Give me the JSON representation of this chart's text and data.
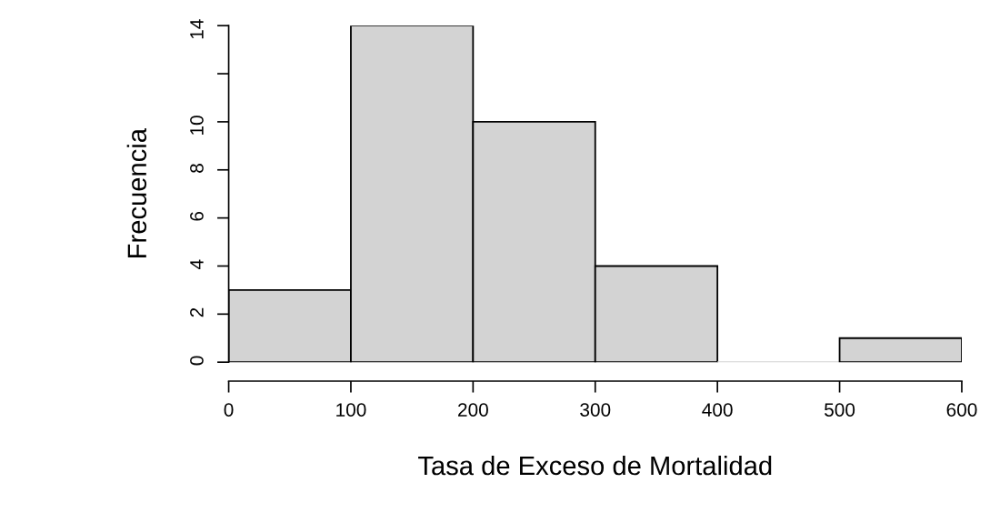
{
  "chart_data": {
    "type": "histogram",
    "xlabel": "Tasa de Exceso de Mortalidad",
    "ylabel": "Frecuencia",
    "bins": [
      0,
      100,
      200,
      300,
      400,
      500,
      600
    ],
    "values": [
      3,
      14,
      10,
      4,
      0,
      1
    ],
    "color": "#d3d3d3",
    "xlim": [
      0,
      600
    ],
    "xticks": [
      0,
      100,
      200,
      300,
      400,
      500,
      600
    ],
    "ylim": [
      0,
      14
    ],
    "yticks": [
      0,
      2,
      4,
      6,
      8,
      10,
      {
        "value": 12,
        "label": null
      },
      14
    ]
  }
}
